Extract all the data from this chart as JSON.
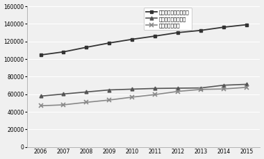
{
  "years": [
    2006,
    2007,
    2008,
    2009,
    2010,
    2011,
    2012,
    2013,
    2014,
    2015
  ],
  "total": [
    104665,
    108173,
    113377,
    118272,
    122436,
    126123,
    130084,
    132570,
    136217,
    139054
  ],
  "elementary": [
    57814,
    60239,
    62573,
    64883,
    65765,
    66559,
    66879,
    67121,
    70226,
    71264
  ],
  "high": [
    46851,
    47934,
    50804,
    53389,
    56671,
    59564,
    63205,
    65449,
    65991,
    67790
  ],
  "legend1": "障害児学校在籍者総数",
  "legend2": "幼小中学部在籍者数",
  "legend3": "高等部在籍者数",
  "ylim": [
    0,
    160000
  ],
  "yticks": [
    0,
    20000,
    40000,
    60000,
    80000,
    100000,
    120000,
    140000,
    160000
  ],
  "xlim": [
    2005.4,
    2015.6
  ],
  "color_total": "#333333",
  "color_elem": "#555555",
  "color_high": "#888888",
  "bg_color": "#f0f0f0",
  "grid_color": "#ffffff",
  "marker_total": "s",
  "marker_elem": "^",
  "marker_high": "x"
}
